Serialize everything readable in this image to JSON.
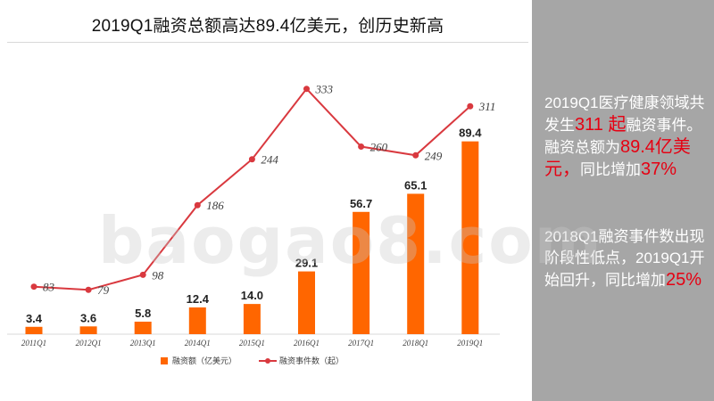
{
  "title": "2019Q1融资总额高达89.4亿美元，创历史新高",
  "chart_data": {
    "type": "bar",
    "title": "2019Q1融资总额高达89.4亿美元，创历史新高",
    "categories": [
      "2011Q1",
      "2012Q1",
      "2013Q1",
      "2014Q1",
      "2015Q1",
      "2016Q1",
      "2017Q1",
      "2018Q1",
      "2019Q1"
    ],
    "series": [
      {
        "name": "融资额（亿美元）",
        "type": "bar",
        "color": "#ff6600",
        "values": [
          3.4,
          3.6,
          5.8,
          12.4,
          14.0,
          29.1,
          56.7,
          65.1,
          89.4
        ],
        "labels": [
          "3.4",
          "3.6",
          "5.8",
          "12.4",
          "14.0",
          "29.1",
          "56.7",
          "65.1",
          "89.4"
        ]
      },
      {
        "name": "融资事件数（起）",
        "type": "line",
        "color": "#d9393f",
        "values": [
          83,
          79,
          98,
          186,
          244,
          333,
          260,
          249,
          311
        ]
      }
    ],
    "xlabel": "",
    "ylabel": "",
    "legend": "bottom"
  },
  "panel": {
    "p1": [
      "2019Q1医疗健康领域共发生",
      "311 起",
      "融资事件。融资总额为",
      "89.4亿美元，",
      "同比增加",
      "37%"
    ],
    "p2": [
      "2018Q1融资事件数出现阶段性低点，2019Q1开始回升，同比增加",
      "25%"
    ]
  },
  "watermark": "baogao8.com",
  "colors": {
    "bar": "#ff6600",
    "line": "#d9393f",
    "panel": "#a6a6a6",
    "highlight": "#e60012"
  }
}
